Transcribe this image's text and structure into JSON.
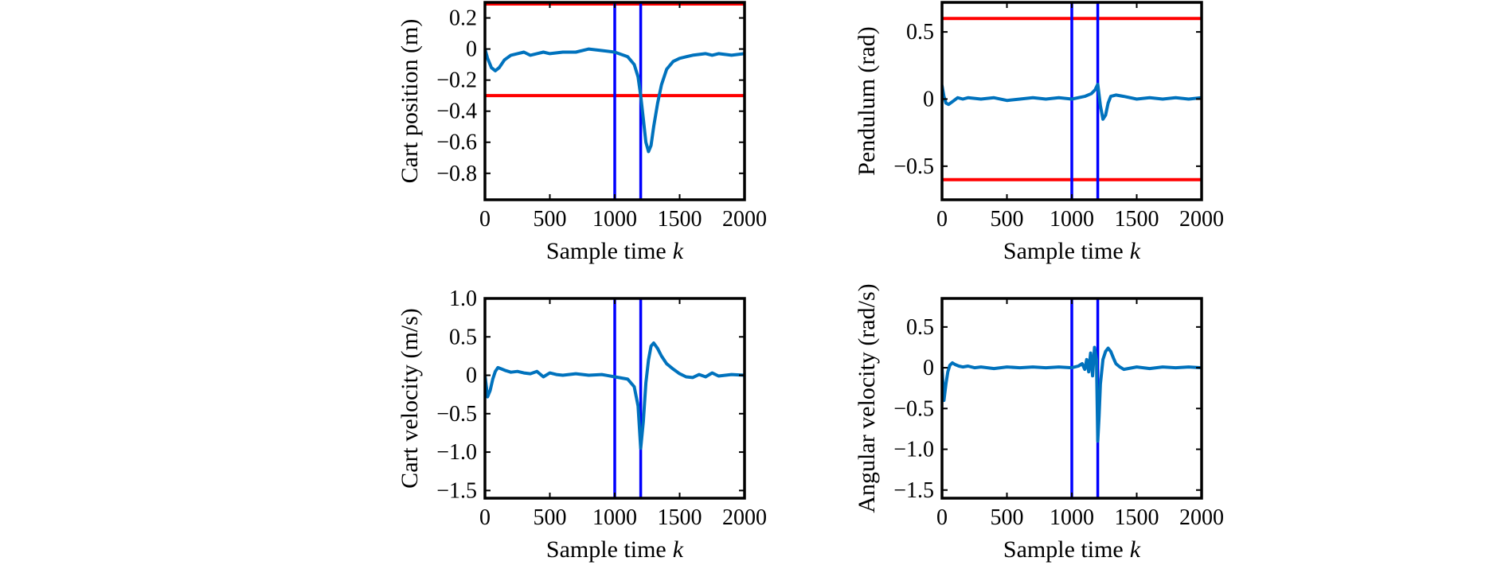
{
  "colors": {
    "signal": "#0072BD",
    "constraint": "#FF0000",
    "event_marker": "#0000FF",
    "axes": "#000000"
  },
  "chart_data": [
    {
      "type": "line",
      "xlabel": "Sample time",
      "xlabel_var": "k",
      "ylabel": "Cart position (m)",
      "xlim": [
        0,
        2000
      ],
      "ylim": [
        -0.97,
        0.3
      ],
      "xticks": [
        0,
        500,
        1000,
        1500,
        2000
      ],
      "xtick_labels": [
        "0",
        "500",
        "1000",
        "1500",
        "2000"
      ],
      "yticks": [
        0.2,
        0,
        -0.2,
        -0.4,
        -0.6,
        -0.8
      ],
      "ytick_labels": [
        "0.2",
        "0",
        "−0.2",
        "−0.4",
        "−0.6",
        "−0.8"
      ],
      "hlines": [
        0.29,
        -0.3
      ],
      "vlines": [
        1000,
        1200
      ],
      "series": [
        {
          "x": [
            0,
            20,
            50,
            80,
            110,
            150,
            200,
            250,
            300,
            350,
            400,
            450,
            500,
            600,
            700,
            800,
            900,
            1000,
            1100,
            1150,
            1180,
            1200,
            1220,
            1240,
            1260,
            1280,
            1300,
            1330,
            1360,
            1400,
            1450,
            1500,
            1550,
            1600,
            1700,
            1750,
            1800,
            1900,
            2000
          ],
          "y": [
            0,
            -0.06,
            -0.12,
            -0.14,
            -0.12,
            -0.07,
            -0.04,
            -0.03,
            -0.02,
            -0.04,
            -0.03,
            -0.02,
            -0.03,
            -0.02,
            -0.02,
            0,
            -0.01,
            -0.02,
            -0.05,
            -0.1,
            -0.18,
            -0.3,
            -0.45,
            -0.6,
            -0.66,
            -0.62,
            -0.5,
            -0.35,
            -0.23,
            -0.13,
            -0.08,
            -0.06,
            -0.05,
            -0.04,
            -0.03,
            -0.04,
            -0.03,
            -0.04,
            -0.03
          ]
        }
      ]
    },
    {
      "type": "line",
      "xlabel": "Sample time",
      "xlabel_var": "k",
      "ylabel": "Pendulum (rad)",
      "xlim": [
        0,
        2000
      ],
      "ylim": [
        -0.75,
        0.72
      ],
      "xticks": [
        0,
        500,
        1000,
        1500,
        2000
      ],
      "xtick_labels": [
        "0",
        "500",
        "1000",
        "1500",
        "2000"
      ],
      "yticks": [
        0.5,
        0,
        -0.5
      ],
      "ytick_labels": [
        "0.5",
        "0",
        "−0.5"
      ],
      "hlines": [
        0.6,
        -0.6
      ],
      "vlines": [
        1000,
        1200
      ],
      "series": [
        {
          "x": [
            0,
            15,
            30,
            50,
            80,
            120,
            160,
            200,
            300,
            400,
            500,
            600,
            700,
            800,
            900,
            1000,
            1100,
            1150,
            1180,
            1200,
            1220,
            1240,
            1260,
            1280,
            1300,
            1340,
            1400,
            1500,
            1600,
            1700,
            1800,
            1900,
            2000
          ],
          "y": [
            0.1,
            0.02,
            -0.03,
            -0.04,
            -0.02,
            0.01,
            0,
            0.01,
            0,
            0.01,
            -0.01,
            0,
            0.01,
            0,
            0.01,
            0,
            0.02,
            0.04,
            0.07,
            0.11,
            -0.05,
            -0.15,
            -0.12,
            -0.03,
            0.02,
            0.03,
            0.02,
            0,
            0.01,
            0,
            0.01,
            0,
            0.01
          ]
        }
      ]
    },
    {
      "type": "line",
      "xlabel": "Sample time",
      "xlabel_var": "k",
      "ylabel": "Cart velocity (m/s)",
      "xlim": [
        0,
        2000
      ],
      "ylim": [
        -1.6,
        1.0
      ],
      "xticks": [
        0,
        500,
        1000,
        1500,
        2000
      ],
      "xtick_labels": [
        "0",
        "500",
        "1000",
        "1500",
        "2000"
      ],
      "yticks": [
        1.0,
        0.5,
        0,
        -0.5,
        -1.0,
        -1.5
      ],
      "ytick_labels": [
        "1.0",
        "0.5",
        "0",
        "−0.5",
        "−1.0",
        "−1.5"
      ],
      "hlines": [],
      "vlines": [
        1000,
        1200
      ],
      "series": [
        {
          "x": [
            0,
            20,
            40,
            60,
            80,
            100,
            130,
            160,
            200,
            250,
            300,
            350,
            400,
            450,
            500,
            550,
            600,
            700,
            800,
            900,
            1000,
            1100,
            1150,
            1180,
            1200,
            1220,
            1240,
            1260,
            1280,
            1300,
            1330,
            1360,
            1400,
            1450,
            1500,
            1550,
            1600,
            1650,
            1700,
            1750,
            1800,
            1900,
            2000
          ],
          "y": [
            0,
            -0.28,
            -0.2,
            -0.05,
            0.05,
            0.1,
            0.08,
            0.06,
            0.04,
            0.05,
            0.03,
            0.02,
            0.05,
            -0.02,
            0.03,
            0.01,
            0,
            0.02,
            0,
            0.01,
            -0.02,
            -0.05,
            -0.15,
            -0.4,
            -0.95,
            -0.6,
            -0.1,
            0.2,
            0.38,
            0.42,
            0.35,
            0.25,
            0.15,
            0.08,
            0.02,
            -0.02,
            -0.03,
            0.01,
            -0.02,
            0.03,
            -0.01,
            0.01,
            0
          ]
        }
      ]
    },
    {
      "type": "line",
      "xlabel": "Sample time",
      "xlabel_var": "k",
      "ylabel": "Angular velocity (rad/s)",
      "xlim": [
        0,
        2000
      ],
      "ylim": [
        -1.6,
        0.85
      ],
      "xticks": [
        0,
        500,
        1000,
        1500,
        2000
      ],
      "xtick_labels": [
        "0",
        "500",
        "1000",
        "1500",
        "2000"
      ],
      "yticks": [
        0.5,
        0,
        -0.5,
        -1.0,
        -1.5
      ],
      "ytick_labels": [
        "0.5",
        "0",
        "−0.5",
        "−1.0",
        "−1.5"
      ],
      "hlines": [],
      "vlines": [
        1000,
        1200
      ],
      "series": [
        {
          "x": [
            0,
            15,
            30,
            45,
            60,
            80,
            100,
            130,
            160,
            200,
            250,
            300,
            400,
            500,
            600,
            700,
            800,
            900,
            1000,
            1050,
            1080,
            1100,
            1115,
            1130,
            1145,
            1160,
            1175,
            1190,
            1200,
            1210,
            1220,
            1240,
            1260,
            1280,
            1300,
            1320,
            1340,
            1370,
            1400,
            1500,
            1600,
            1700,
            1800,
            1900,
            2000
          ],
          "y": [
            0,
            -0.4,
            -0.2,
            -0.05,
            0.03,
            0.06,
            0.04,
            0.02,
            0.01,
            0.02,
            0,
            0.01,
            -0.01,
            0.01,
            0,
            0.01,
            0,
            0.01,
            0,
            0.02,
            0.05,
            -0.02,
            0.1,
            -0.05,
            0.18,
            -0.1,
            0.25,
            0.1,
            -0.9,
            -0.6,
            -0.2,
            0.1,
            0.2,
            0.24,
            0.2,
            0.12,
            0.05,
            0.01,
            -0.02,
            0.01,
            -0.01,
            0.01,
            0,
            0.01,
            0
          ]
        }
      ]
    }
  ]
}
